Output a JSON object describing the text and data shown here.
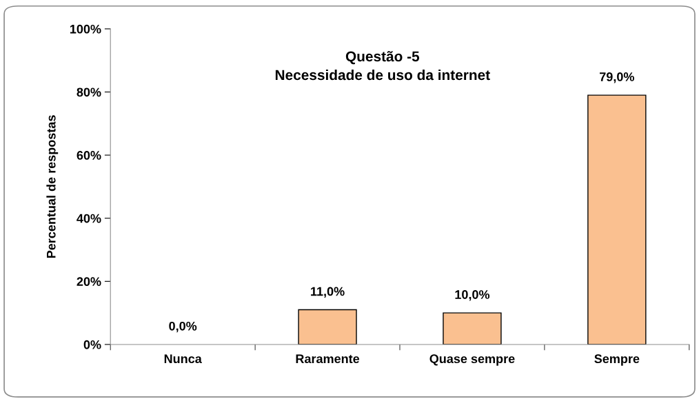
{
  "chart_data": {
    "type": "bar",
    "title": "Questão -5\nNecessidade de uso da internet",
    "ylabel": "Percentual de respostas",
    "categories": [
      "Nunca",
      "Raramente",
      "Quase sempre",
      "Sempre"
    ],
    "values": [
      0,
      11,
      10,
      79
    ],
    "color": "#fac090",
    "value_labels": [
      "0,0%",
      "11,0%",
      "10,0%",
      "79,0%"
    ],
    "ylim": [
      0,
      100
    ],
    "yticks": [
      {
        "value": 0,
        "label": "0%"
      },
      {
        "value": 20,
        "label": "20%"
      },
      {
        "value": 40,
        "label": "40%"
      },
      {
        "value": 60,
        "label": "60%"
      },
      {
        "value": 80,
        "label": "80%"
      },
      {
        "value": 100,
        "label": "100%"
      }
    ],
    "grid": false,
    "legend": false
  }
}
